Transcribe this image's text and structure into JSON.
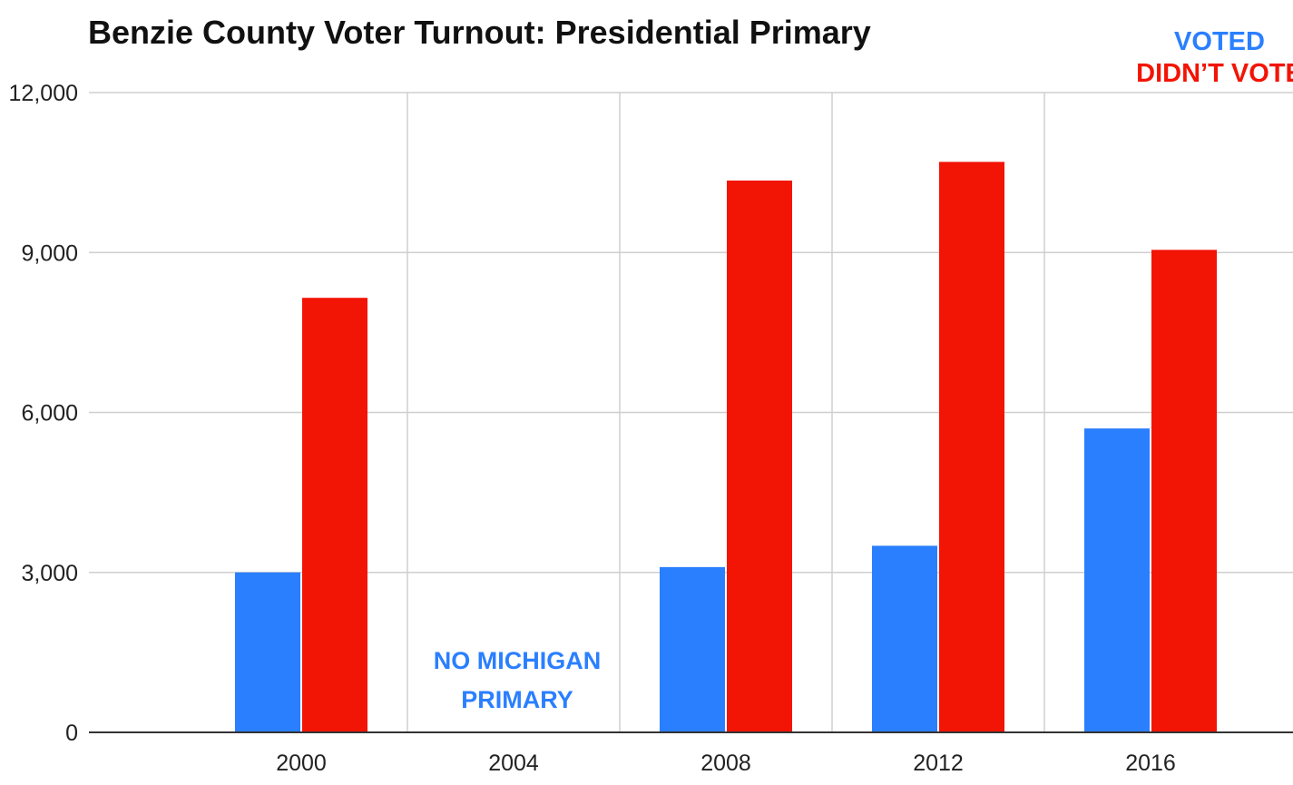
{
  "chart_data": {
    "type": "bar",
    "title": "Benzie County Voter Turnout: Presidential Primary",
    "xlabel": "",
    "ylabel": "",
    "categories": [
      "2000",
      "2004",
      "2008",
      "2012",
      "2016"
    ],
    "series": [
      {
        "name": "VOTED",
        "color": "#2a7fff",
        "values": [
          3000,
          null,
          3100,
          3500,
          5700
        ]
      },
      {
        "name": "DIDN’T VOTE",
        "color": "#f21405",
        "values": [
          8150,
          null,
          10350,
          10700,
          9050
        ]
      }
    ],
    "ylim": [
      0,
      12000
    ],
    "yticks": [
      0,
      3000,
      6000,
      9000,
      12000
    ],
    "ytick_labels": [
      "0",
      "3,000",
      "6,000",
      "9,000",
      "12,000"
    ],
    "grid": true,
    "legend_position": "top-right",
    "annotation": {
      "category": "2004",
      "lines": [
        "NO MICHIGAN",
        "PRIMARY"
      ],
      "color": "#2a7fff"
    }
  }
}
